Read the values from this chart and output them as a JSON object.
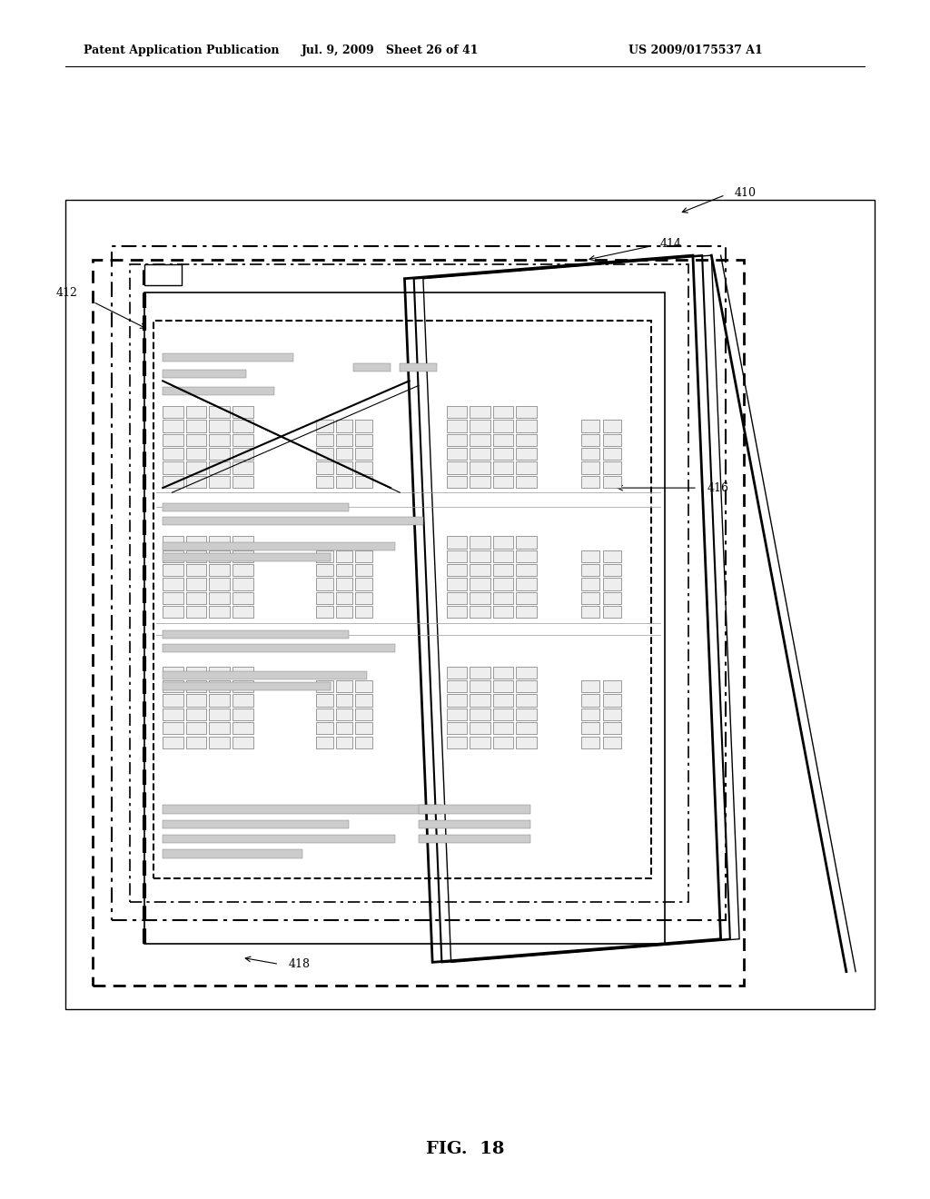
{
  "bg_color": "#ffffff",
  "header_left": "Patent Application Publication",
  "header_mid": "Jul. 9, 2009   Sheet 26 of 41",
  "header_right": "US 2009/0175537 A1",
  "footer_label": "FIG.  18",
  "label_410": "410",
  "label_412": "412",
  "label_414": "414",
  "label_416": "416",
  "label_418": "418"
}
